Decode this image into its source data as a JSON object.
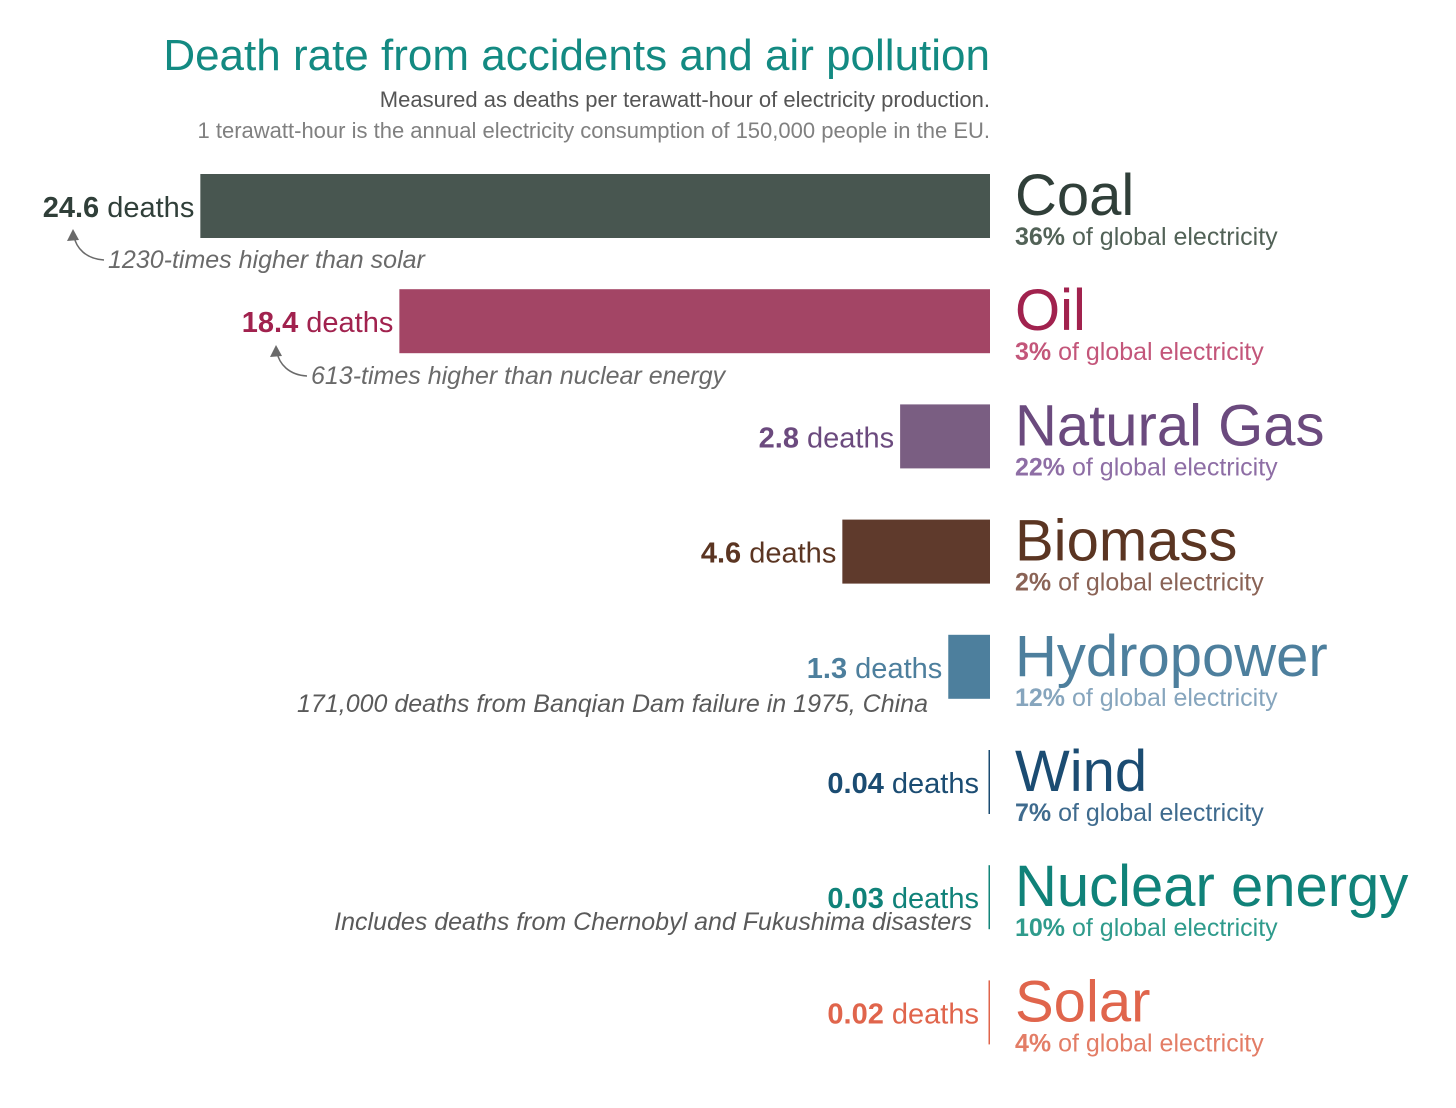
{
  "header": {
    "title": "Death rate from accidents and air pollution",
    "subtitle": "Measured as deaths per terawatt-hour of electricity production.",
    "subtitle2": "1 terawatt-hour is the annual electricity consumption of 150,000 people in the EU."
  },
  "chart_data": {
    "type": "bar",
    "orientation": "horizontal",
    "value_unit": "deaths",
    "share_suffix": "of global electricity",
    "categories": [
      "Coal",
      "Oil",
      "Natural Gas",
      "Biomass",
      "Hydropower",
      "Wind",
      "Nuclear energy",
      "Solar"
    ],
    "values": [
      24.6,
      18.4,
      2.8,
      4.6,
      1.3,
      0.04,
      0.03,
      0.02
    ],
    "value_labels": [
      "24.6",
      "18.4",
      "2.8",
      "4.6",
      "1.3",
      "0.04",
      "0.03",
      "0.02"
    ],
    "shares": [
      "36%",
      "3%",
      "22%",
      "2%",
      "12%",
      "7%",
      "10%",
      "4%"
    ],
    "colors": [
      "#485650",
      "#a34565",
      "#7a5e82",
      "#5f3a2c",
      "#4d7f9d",
      "#1b4c72",
      "#13857a",
      "#e0654c"
    ],
    "label_colors": [
      "#303f39",
      "#a1224e",
      "#6b4a7e",
      "#5b3522",
      "#4d7f9d",
      "#1b4c72",
      "#108279",
      "#e0654c"
    ],
    "share_colors": [
      "#526257",
      "#c3567a",
      "#8e6ea5",
      "#8a6356",
      "#86a5bd",
      "#3f6b8e",
      "#2f9b8c",
      "#e37d66"
    ],
    "annotations": [
      "1230-times higher than solar",
      "613-times higher than nuclear energy",
      "171,000 deaths from Banqian Dam failure in 1975, China",
      "Includes deaths from Chernobyl and Fukushima disasters"
    ]
  }
}
